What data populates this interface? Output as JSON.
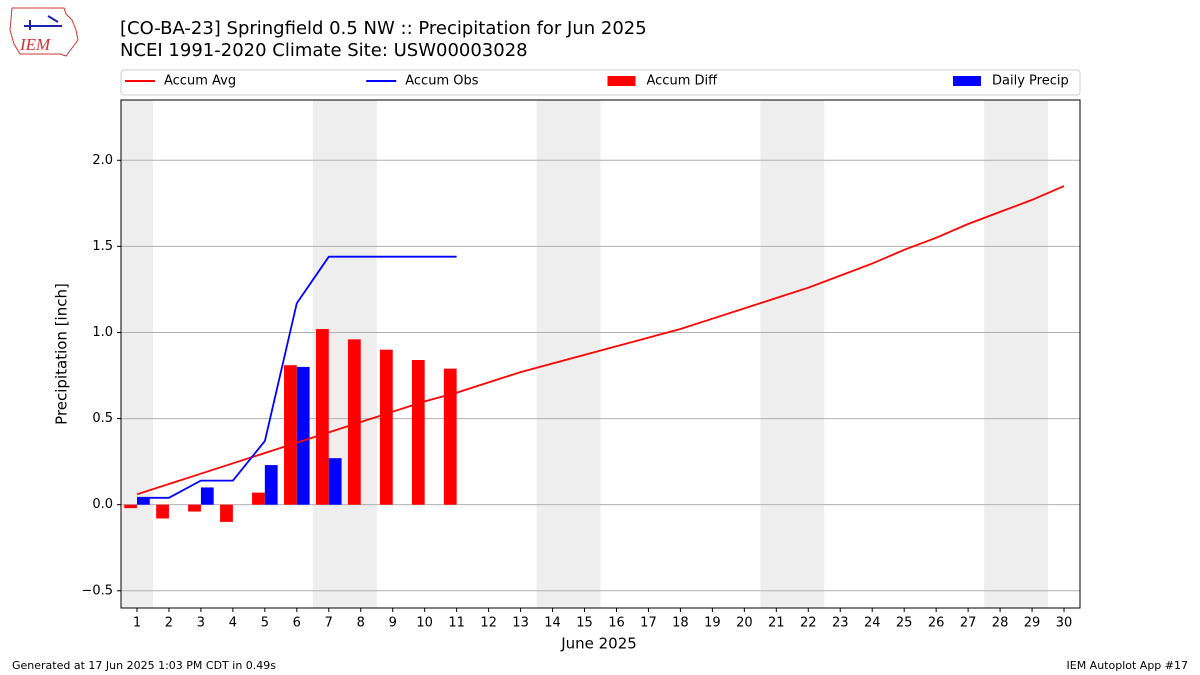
{
  "chart_data": {
    "type": "bar",
    "logo_text": "IEM",
    "title": "[CO-BA-23] Springfield 0.5 NW :: Precipitation for Jun 2025",
    "subtitle": "NCEI 1991-2020 Climate Site: USW00003028",
    "xlabel": "June 2025",
    "ylabel": "Precipitation [inch]",
    "footer_left": "Generated at 17 Jun 2025 1:03 PM CDT in 0.49s",
    "footer_right": "IEM Autoplot App #17",
    "x": [
      1,
      2,
      3,
      4,
      5,
      6,
      7,
      8,
      9,
      10,
      11,
      12,
      13,
      14,
      15,
      16,
      17,
      18,
      19,
      20,
      21,
      22,
      23,
      24,
      25,
      26,
      27,
      28,
      29,
      30
    ],
    "xlim": [
      0.5,
      30.5
    ],
    "xticks": [
      1,
      2,
      3,
      4,
      5,
      6,
      7,
      8,
      9,
      10,
      11,
      12,
      13,
      14,
      15,
      16,
      17,
      18,
      19,
      20,
      21,
      22,
      23,
      24,
      25,
      26,
      27,
      28,
      29,
      30
    ],
    "ylim": [
      -0.6,
      2.35
    ],
    "yticks": [
      {
        "value": -0.5,
        "label": "−0.5"
      },
      {
        "value": 0,
        "label": "0.0"
      },
      0.5,
      {
        "value": 1,
        "label": "1.0"
      },
      1.5,
      {
        "value": 2,
        "label": "2.0"
      }
    ],
    "grid": true,
    "shaded_spans": [
      [
        0.5,
        1.5
      ],
      [
        6.5,
        8.5
      ],
      [
        13.5,
        15.5
      ],
      [
        20.5,
        22.5
      ],
      [
        27.5,
        29.5
      ]
    ],
    "shade_color": "#eeeeee",
    "series": [
      {
        "name": "Accum Avg",
        "type": "line",
        "color": "#ff0000",
        "values": [
          0.06,
          0.12,
          0.18,
          0.24,
          0.3,
          0.36,
          0.42,
          0.48,
          0.54,
          0.6,
          0.65,
          0.71,
          0.77,
          0.82,
          0.87,
          0.92,
          0.97,
          1.02,
          1.08,
          1.14,
          1.2,
          1.26,
          1.33,
          1.4,
          1.48,
          1.55,
          1.63,
          1.7,
          1.77,
          1.85
        ]
      },
      {
        "name": "Accum Obs",
        "type": "line",
        "color": "#0000ff",
        "values": [
          0.04,
          0.04,
          0.14,
          0.14,
          0.37,
          1.17,
          1.44,
          1.44,
          1.44,
          1.44,
          1.44,
          null,
          null,
          null,
          null,
          null,
          null,
          null,
          null,
          null,
          null,
          null,
          null,
          null,
          null,
          null,
          null,
          null,
          null,
          null
        ]
      },
      {
        "name": "Accum Diff",
        "type": "bar",
        "color": "#ff0000",
        "values": [
          -0.02,
          -0.08,
          -0.04,
          -0.1,
          0.07,
          0.81,
          1.02,
          0.96,
          0.9,
          0.84,
          0.79,
          null,
          null,
          null,
          null,
          null,
          null,
          null,
          null,
          null,
          null,
          null,
          null,
          null,
          null,
          null,
          null,
          null,
          null,
          null
        ]
      },
      {
        "name": "Daily Precip",
        "type": "bar",
        "color": "#0000ff",
        "values": [
          0.04,
          0,
          0.1,
          0,
          0.23,
          0.8,
          0.27,
          0,
          0,
          0,
          0,
          null,
          null,
          null,
          null,
          null,
          null,
          null,
          null,
          null,
          null,
          null,
          null,
          null,
          null,
          null,
          null,
          null,
          null,
          null
        ]
      }
    ]
  }
}
